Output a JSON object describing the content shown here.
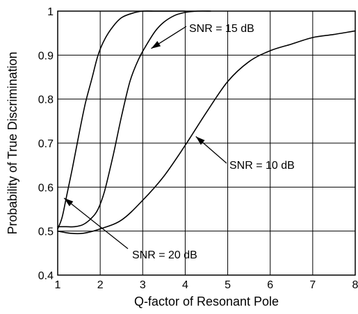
{
  "chart_data": {
    "type": "line",
    "title": "",
    "xlabel": "Q-factor of Resonant Pole",
    "ylabel": "Probability of True Discrimination",
    "xlim": [
      1,
      8
    ],
    "ylim": [
      0.4,
      1.0
    ],
    "xticks": [
      1,
      2,
      3,
      4,
      5,
      6,
      7,
      8
    ],
    "yticks": [
      0.4,
      0.5,
      0.6,
      0.7,
      0.8,
      0.9,
      1
    ],
    "xtick_labels": [
      "1",
      "2",
      "3",
      "4",
      "5",
      "6",
      "7",
      "8"
    ],
    "ytick_labels": [
      "0.4",
      "0.5",
      "0.6",
      "0.7",
      "0.8",
      "0.9",
      "1"
    ],
    "grid": true,
    "legend": "none",
    "series": [
      {
        "x": [
          1.0,
          1.1,
          1.2,
          1.35,
          1.5,
          1.65,
          1.8,
          1.95,
          2.1,
          2.3,
          2.5,
          2.75,
          3.0,
          3.3,
          3.6,
          4.0
        ],
        "y": [
          0.505,
          0.53,
          0.575,
          0.645,
          0.72,
          0.79,
          0.845,
          0.9,
          0.935,
          0.965,
          0.985,
          0.995,
          1.0,
          1.0,
          1.0,
          1.0
        ]
      },
      {
        "x": [
          1.0,
          1.2,
          1.4,
          1.6,
          1.8,
          1.95,
          2.1,
          2.3,
          2.5,
          2.7,
          2.9,
          3.1,
          3.3,
          3.5,
          3.75,
          4.0,
          4.3,
          4.6
        ],
        "y": [
          0.51,
          0.51,
          0.51,
          0.515,
          0.53,
          0.55,
          0.59,
          0.67,
          0.76,
          0.84,
          0.89,
          0.925,
          0.955,
          0.975,
          0.99,
          0.997,
          1.0,
          1.0
        ]
      },
      {
        "x": [
          1.0,
          1.3,
          1.6,
          2.0,
          2.5,
          3.0,
          3.5,
          4.0,
          4.5,
          5.0,
          5.5,
          6.0,
          6.5,
          7.0,
          7.5,
          8.0
        ],
        "y": [
          0.5,
          0.495,
          0.495,
          0.505,
          0.525,
          0.57,
          0.625,
          0.695,
          0.77,
          0.84,
          0.885,
          0.91,
          0.925,
          0.94,
          0.947,
          0.955
        ]
      }
    ],
    "annotations": [
      {
        "text": "SNR = 15 dB",
        "target": [
          3.2,
          0.915
        ]
      },
      {
        "text": "SNR = 10 dB",
        "target": [
          4.25,
          0.715
        ]
      },
      {
        "text": "SNR = 20 dB",
        "target": [
          1.15,
          0.575
        ]
      }
    ]
  }
}
